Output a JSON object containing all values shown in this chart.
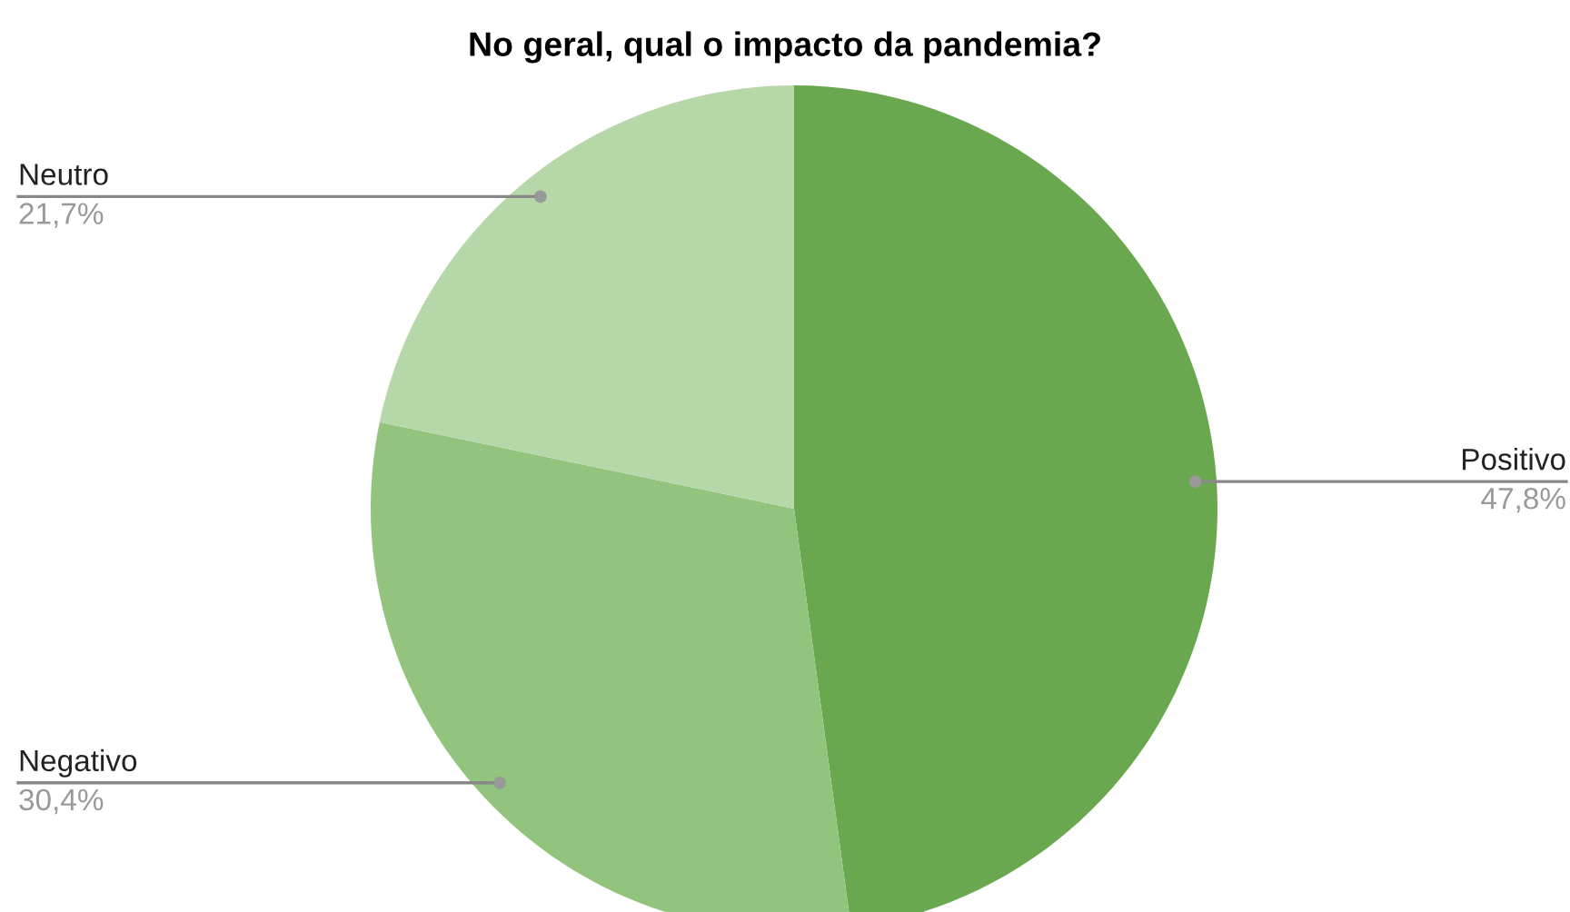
{
  "chart_data": {
    "type": "pie",
    "title": "No geral, qual o impacto da pandemia?",
    "categories": [
      "Positivo",
      "Negativo",
      "Neutro"
    ],
    "values": [
      47.8,
      30.4,
      21.7
    ],
    "value_labels": [
      "47,8%",
      "30,4%",
      "21,7%"
    ],
    "colors": [
      "#6aa84f",
      "#93c47d",
      "#b6d7a8"
    ],
    "legend": false
  }
}
